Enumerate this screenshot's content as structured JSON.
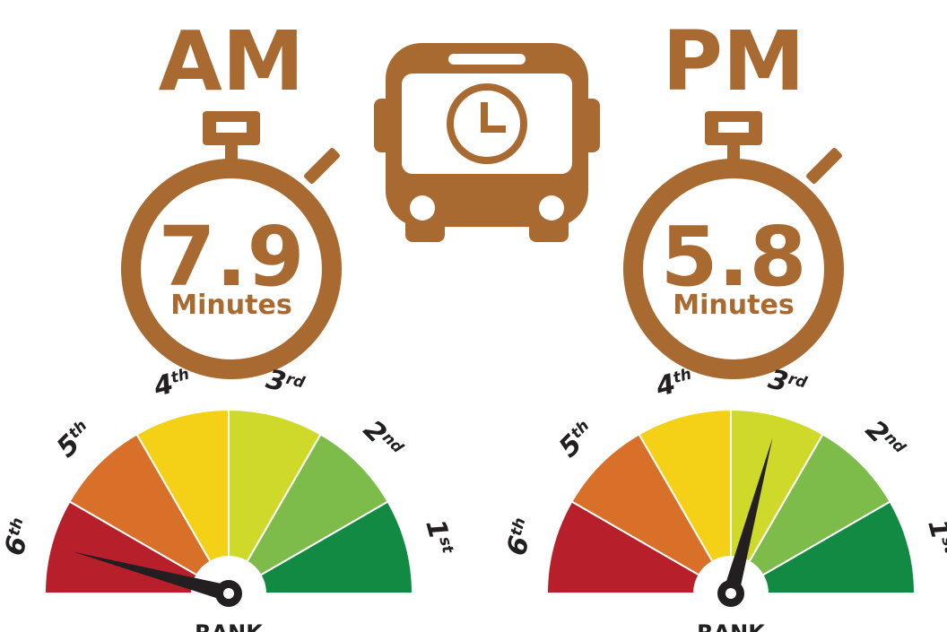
{
  "panels": [
    {
      "period": "AM",
      "value": "7.9",
      "unit": "Minutes",
      "rank": 6
    },
    {
      "period": "PM",
      "value": "5.8",
      "unit": "Minutes",
      "rank": 3
    }
  ],
  "gauge": {
    "caption": "RANK",
    "ranks": [
      {
        "number": "1",
        "suffix": "st",
        "color": "#128a44"
      },
      {
        "number": "2",
        "suffix": "nd",
        "color": "#7dbb4a"
      },
      {
        "number": "3",
        "suffix": "rd",
        "color": "#cfd929"
      },
      {
        "number": "4",
        "suffix": "th",
        "color": "#f4d016"
      },
      {
        "number": "5",
        "suffix": "th",
        "color": "#d9702a"
      },
      {
        "number": "6",
        "suffix": "th",
        "color": "#b71f2a"
      }
    ]
  }
}
